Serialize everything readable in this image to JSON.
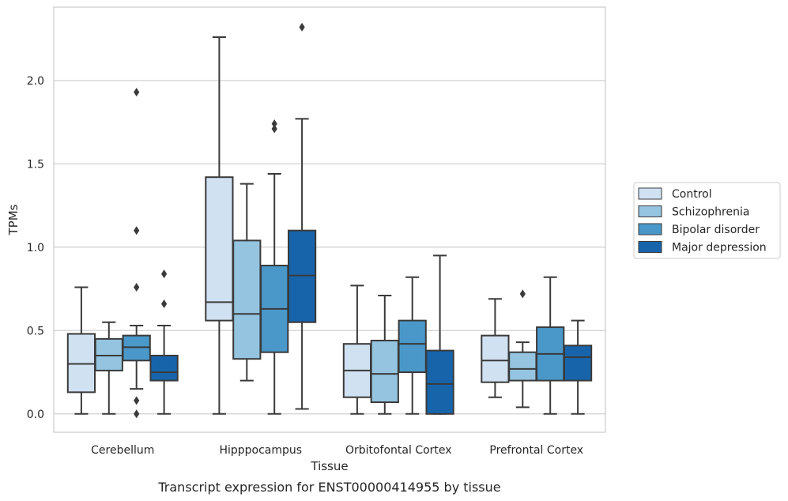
{
  "chart_data": {
    "type": "box",
    "xlabel": "Tissue",
    "ylabel": "TPMs",
    "caption": "Transcript expression for ENST00000414955 by tissue",
    "ylim": [
      -0.11,
      2.44
    ],
    "yticks": [
      "0.0",
      "0.5",
      "1.0",
      "1.5",
      "2.0"
    ],
    "grid": "horizontal",
    "legend_placement": "right",
    "categories": [
      "Cerebellum",
      "Hipppocampus",
      "Orbitofontal Cortex",
      "Prefrontal Cortex"
    ],
    "series": [
      {
        "name": "Control",
        "color": "#d0e1f2",
        "boxes": [
          {
            "low": 0.0,
            "q1": 0.13,
            "median": 0.3,
            "q3": 0.48,
            "high": 0.76,
            "outliers": []
          },
          {
            "low": 0.0,
            "q1": 0.56,
            "median": 0.67,
            "q3": 1.42,
            "high": 2.26,
            "outliers": []
          },
          {
            "low": 0.0,
            "q1": 0.1,
            "median": 0.26,
            "q3": 0.42,
            "high": 0.77,
            "outliers": []
          },
          {
            "low": 0.1,
            "q1": 0.19,
            "median": 0.32,
            "q3": 0.47,
            "high": 0.69,
            "outliers": []
          }
        ]
      },
      {
        "name": "Schizophrenia",
        "color": "#94c4df",
        "boxes": [
          {
            "low": 0.0,
            "q1": 0.26,
            "median": 0.35,
            "q3": 0.45,
            "high": 0.55,
            "outliers": []
          },
          {
            "low": 0.2,
            "q1": 0.33,
            "median": 0.6,
            "q3": 1.04,
            "high": 1.38,
            "outliers": []
          },
          {
            "low": 0.0,
            "q1": 0.07,
            "median": 0.24,
            "q3": 0.44,
            "high": 0.71,
            "outliers": []
          },
          {
            "low": 0.04,
            "q1": 0.2,
            "median": 0.27,
            "q3": 0.37,
            "high": 0.43,
            "outliers": [
              0.72
            ]
          }
        ]
      },
      {
        "name": "Bipolar disorder",
        "color": "#4a98c9",
        "boxes": [
          {
            "low": 0.15,
            "q1": 0.32,
            "median": 0.4,
            "q3": 0.47,
            "high": 0.53,
            "outliers": [
              0.08,
              0.0,
              1.93,
              1.1,
              0.76
            ]
          },
          {
            "low": 0.0,
            "q1": 0.37,
            "median": 0.63,
            "q3": 0.89,
            "high": 1.44,
            "outliers": [
              1.71,
              1.74
            ]
          },
          {
            "low": 0.0,
            "q1": 0.25,
            "median": 0.42,
            "q3": 0.56,
            "high": 0.82,
            "outliers": []
          },
          {
            "low": 0.0,
            "q1": 0.2,
            "median": 0.36,
            "q3": 0.52,
            "high": 0.82,
            "outliers": []
          }
        ]
      },
      {
        "name": "Major depression",
        "color": "#1764ab",
        "boxes": [
          {
            "low": 0.0,
            "q1": 0.2,
            "median": 0.25,
            "q3": 0.35,
            "high": 0.53,
            "outliers": [
              0.84,
              0.66
            ]
          },
          {
            "low": 0.03,
            "q1": 0.55,
            "median": 0.83,
            "q3": 1.1,
            "high": 1.77,
            "outliers": [
              2.32
            ]
          },
          {
            "low": 0.0,
            "q1": 0.0,
            "median": 0.18,
            "q3": 0.38,
            "high": 0.95,
            "outliers": []
          },
          {
            "low": 0.0,
            "q1": 0.2,
            "median": 0.34,
            "q3": 0.41,
            "high": 0.56,
            "outliers": []
          }
        ]
      }
    ]
  }
}
